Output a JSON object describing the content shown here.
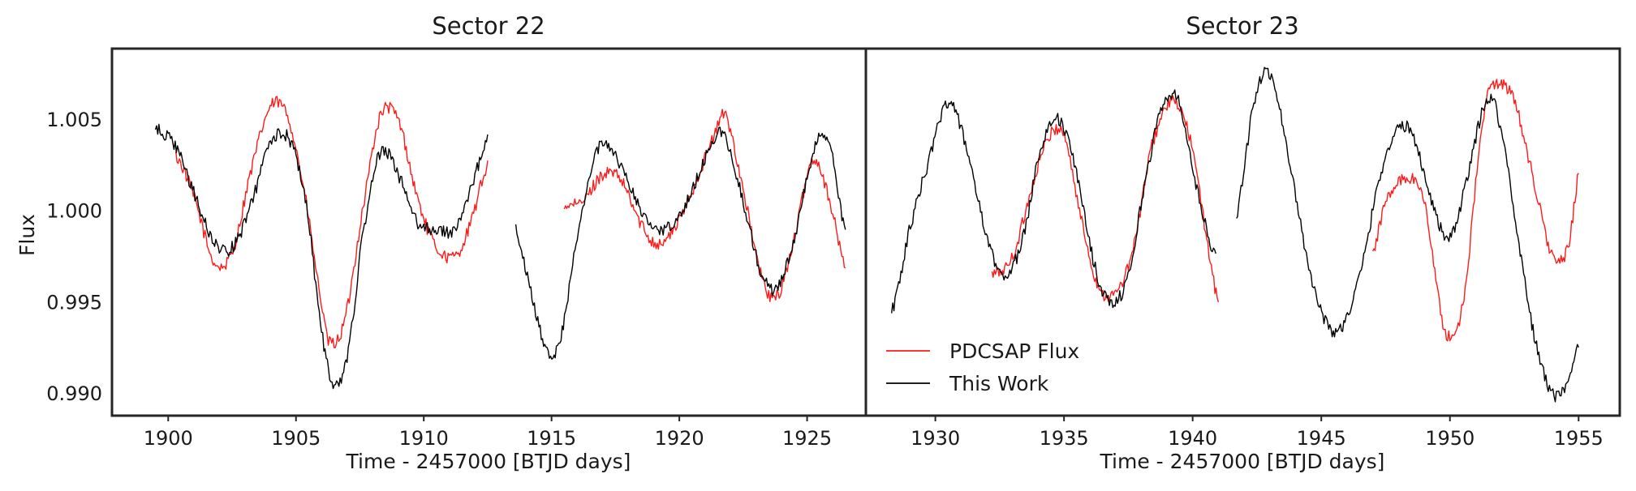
{
  "colors": {
    "pdcsap": "#ff1a1a",
    "this_work": "#000000",
    "frame": "#262626"
  },
  "chart_data": [
    {
      "type": "line",
      "title": "Sector 22",
      "xlabel": "Time - 2457000 [BTJD days]",
      "ylabel": "Flux",
      "xlim": [
        1897.8,
        1927.3
      ],
      "ylim": [
        0.9888,
        1.0089
      ],
      "xticks": [
        1900,
        1905,
        1910,
        1915,
        1920,
        1925
      ],
      "yticks": [
        0.99,
        0.995,
        1.0,
        1.005
      ],
      "xtick_labels": [
        "1900",
        "1905",
        "1910",
        "1915",
        "1920",
        "1925"
      ],
      "ytick_labels": [
        "0.990",
        "0.995",
        "1.000",
        "1.005"
      ],
      "grid": false,
      "series": [
        {
          "name": "PDCSAP Flux",
          "color": "#ff1a1a",
          "segments": [
            {
              "x": [
                1900.3,
                1901.0,
                1901.8,
                1902.5,
                1903.2,
                1904.0,
                1904.7,
                1905.4,
                1906.0,
                1906.3,
                1906.9,
                1907.6,
                1908.3,
                1909.0,
                1909.7,
                1910.4,
                1911.2,
                1911.8,
                1912.5
              ],
              "y": [
                1.003,
                1.0008,
                0.9972,
                0.9977,
                1.002,
                1.0057,
                1.0051,
                1.0005,
                0.995,
                0.9928,
                0.994,
                1.0,
                1.0052,
                1.005,
                1.001,
                0.9982,
                0.9975,
                0.9992,
                1.0025
              ]
            },
            {
              "x": [
                1915.5,
                1916.2,
                1917.0,
                1917.7,
                1918.5,
                1919.2,
                1920.0,
                1920.7,
                1921.4,
                1921.8,
                1922.5,
                1923.2,
                1923.8,
                1924.5,
                1925.2,
                1925.8,
                1926.5
              ],
              "y": [
                1.0003,
                1.0005,
                1.002,
                1.0017,
                0.9993,
                0.9982,
                0.9995,
                1.0018,
                1.0042,
                1.0052,
                1.0012,
                0.9965,
                0.9953,
                0.9985,
                1.0028,
                1.001,
                0.997
              ]
            }
          ]
        },
        {
          "name": "This Work",
          "color": "#000000",
          "segments": [
            {
              "x": [
                1899.5,
                1900.3,
                1901.0,
                1901.8,
                1902.5,
                1903.2,
                1904.0,
                1904.7,
                1905.4,
                1906.0,
                1906.5,
                1907.0,
                1907.6,
                1908.3,
                1909.0,
                1909.7,
                1910.4,
                1911.2,
                1911.8,
                1912.5
              ],
              "y": [
                1.0045,
                1.0035,
                1.001,
                0.9983,
                0.998,
                1.0002,
                1.0037,
                1.004,
                1.0005,
                0.9935,
                0.9905,
                0.992,
                0.9985,
                1.0032,
                1.002,
                0.9995,
                0.999,
                0.999,
                1.001,
                1.004
              ]
            },
            {
              "x": [
                1913.6,
                1914.2,
                1914.8,
                1915.3,
                1916.0,
                1916.7,
                1917.2,
                1917.8,
                1918.5,
                1919.2,
                1920.0,
                1920.7,
                1921.4,
                1921.8,
                1922.5,
                1923.2,
                1923.8,
                1924.5,
                1925.2,
                1925.8,
                1926.5
              ],
              "y": [
                0.999,
                0.9955,
                0.9925,
                0.9928,
                0.9985,
                1.003,
                1.0035,
                1.0022,
                1.0,
                0.999,
                0.9998,
                1.0018,
                1.004,
                1.004,
                1.0005,
                0.9967,
                0.9958,
                0.9985,
                1.003,
                1.004,
                0.999
              ]
            }
          ]
        }
      ]
    },
    {
      "type": "line",
      "title": "Sector 23",
      "xlabel": "Time - 2457000 [BTJD days]",
      "ylabel": "",
      "xlim": [
        1927.3,
        1956.6
      ],
      "ylim": [
        0.9888,
        1.0089
      ],
      "xticks": [
        1930,
        1935,
        1940,
        1945,
        1950,
        1955
      ],
      "yticks": [
        0.99,
        0.995,
        1.0,
        1.005
      ],
      "xtick_labels": [
        "1930",
        "1935",
        "1940",
        "1945",
        "1950",
        "1955"
      ],
      "ytick_labels": [],
      "grid": false,
      "legend": {
        "loc": "lower left",
        "entries": [
          "PDCSAP Flux",
          "This Work"
        ]
      },
      "series": [
        {
          "name": "PDCSAP Flux",
          "color": "#ff1a1a",
          "segments": [
            {
              "x": [
                1932.2,
                1933.0,
                1933.8,
                1934.4,
                1935.0,
                1935.6,
                1936.3,
                1937.0,
                1937.7,
                1938.4,
                1939.2,
                1939.9,
                1940.5,
                1941.0
              ],
              "y": [
                0.9965,
                0.9975,
                1.0015,
                1.004,
                1.0042,
                1.0,
                0.996,
                0.9955,
                0.998,
                1.0035,
                1.006,
                1.004,
                0.999,
                0.995
              ]
            },
            {
              "x": [
                1947.0,
                1947.5,
                1948.3,
                1949.0,
                1949.8,
                1950.5,
                1951.3,
                1951.8,
                1952.5,
                1953.2,
                1954.0,
                1954.6,
                1955.0
              ],
              "y": [
                0.9978,
                1.0005,
                1.0018,
                1.0005,
                0.9935,
                0.995,
                1.005,
                1.007,
                1.006,
                1.002,
                0.9975,
                0.998,
                1.002
              ]
            }
          ]
        },
        {
          "name": "This Work",
          "color": "#000000",
          "segments": [
            {
              "x": [
                1928.3,
                1929.0,
                1929.8,
                1930.5,
                1931.3,
                1932.0,
                1932.7,
                1933.4,
                1934.1,
                1934.8,
                1935.5,
                1936.2,
                1936.8,
                1937.5,
                1938.2,
                1938.9,
                1939.5,
                1940.2,
                1940.9
              ],
              "y": [
                0.9945,
                0.999,
                1.003,
                1.006,
                1.003,
                0.9985,
                0.9965,
                0.9985,
                1.0035,
                1.005,
                1.002,
                0.997,
                0.995,
                0.9965,
                1.002,
                1.006,
                1.0058,
                1.001,
                0.9975
              ]
            },
            {
              "x": [
                1941.7,
                1942.4,
                1943.0,
                1943.6,
                1944.3,
                1945.0,
                1945.7,
                1946.5,
                1947.3,
                1948.0,
                1948.6,
                1949.3,
                1950.0,
                1950.7,
                1951.4,
                1951.9,
                1952.6,
                1953.3,
                1954.0,
                1954.6,
                1955.0
              ],
              "y": [
                0.9998,
                1.006,
                1.0075,
                1.004,
                0.9985,
                0.9945,
                0.9935,
                0.9965,
                1.002,
                1.0045,
                1.004,
                1.0005,
                0.9985,
                1.002,
                1.006,
                1.005,
                0.999,
                0.993,
                0.99,
                0.9905,
                0.9925
              ]
            }
          ]
        }
      ]
    }
  ]
}
